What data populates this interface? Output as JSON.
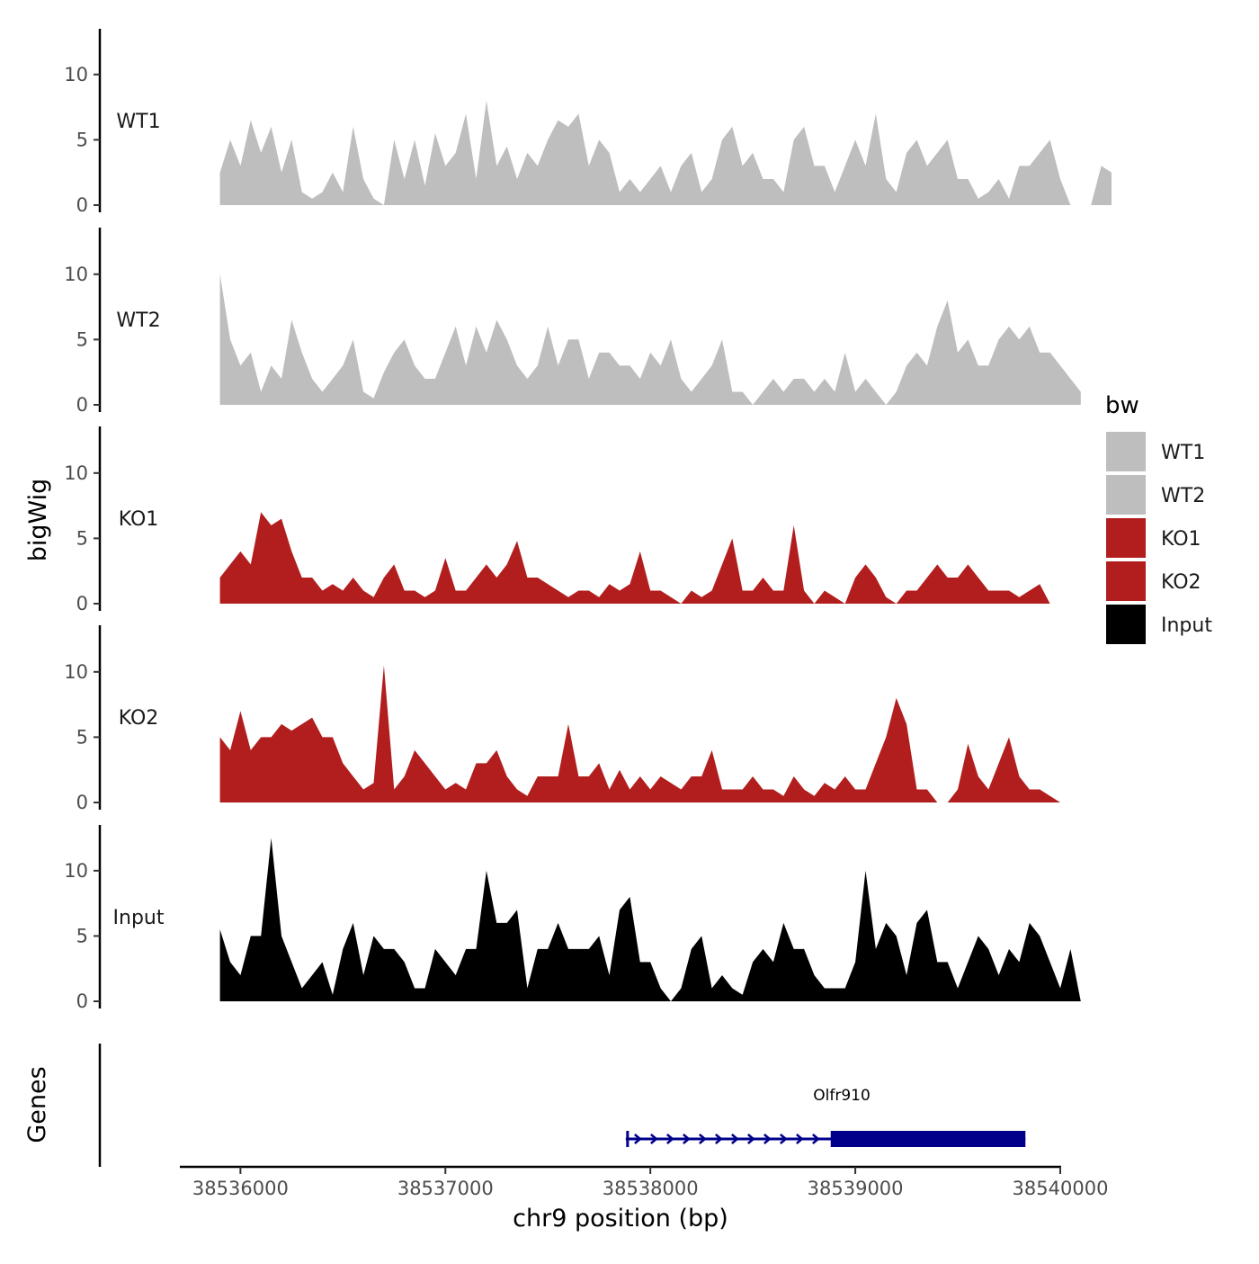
{
  "chart_data": {
    "type": "area",
    "title": "",
    "xlabel": "chr9 position (bp)",
    "ylabel": "bigWig",
    "genes_label": "Genes",
    "xlim": [
      38535700,
      38540000
    ],
    "x_ticks": [
      38536000,
      38537000,
      38538000,
      38539000,
      38540000
    ],
    "x_tick_labels": [
      "38536000",
      "38537000",
      "38538000",
      "38539000",
      "38540000"
    ],
    "ylim": [
      0,
      13.5
    ],
    "y_ticks": [
      0,
      5,
      10
    ],
    "y_tick_labels": [
      "0",
      "5",
      "10"
    ],
    "legend": {
      "title": "bw",
      "position": "right",
      "entries": [
        {
          "label": "WT1",
          "color": "#bebebe"
        },
        {
          "label": "WT2",
          "color": "#bebebe"
        },
        {
          "label": "KO1",
          "color": "#b21e1e"
        },
        {
          "label": "KO2",
          "color": "#b21e1e"
        },
        {
          "label": "Input",
          "color": "#000000"
        }
      ]
    },
    "x_start": 38535900,
    "x_step": 50,
    "series": [
      {
        "name": "WT1",
        "color": "#bebebe",
        "values": [
          2.5,
          5,
          3,
          6.5,
          4,
          6,
          2.5,
          5,
          1,
          0.5,
          1,
          2.5,
          1,
          6,
          2,
          0.5,
          0,
          5,
          2,
          5,
          1.5,
          5.5,
          3,
          4,
          7,
          2,
          8,
          3,
          4.5,
          2,
          4,
          3,
          5,
          6.5,
          6,
          7,
          3,
          5,
          4,
          1,
          2,
          1,
          2,
          3,
          1,
          3,
          4,
          1,
          2,
          5,
          6,
          3,
          4,
          2,
          2,
          1,
          5,
          6,
          3,
          3,
          1,
          3,
          5,
          3,
          7,
          2,
          1,
          4,
          5,
          3,
          4,
          5,
          2,
          2,
          0.5,
          1,
          2,
          0.5,
          3,
          3,
          4,
          5,
          2,
          0,
          0,
          0,
          3,
          2.5
        ]
      },
      {
        "name": "WT2",
        "color": "#bebebe",
        "values": [
          10,
          5,
          3,
          4,
          1,
          3,
          2,
          6.5,
          4,
          2,
          1,
          2,
          3,
          5,
          1,
          0.5,
          2.5,
          4,
          5,
          3,
          2,
          2,
          4,
          6,
          3,
          6,
          4,
          6.5,
          5,
          3,
          2,
          3,
          6,
          3,
          5,
          5,
          2,
          4,
          4,
          3,
          3,
          2,
          4,
          3,
          5,
          2,
          1,
          2,
          3,
          5,
          1,
          1,
          0,
          1,
          2,
          1,
          2,
          2,
          1,
          2,
          1,
          4,
          1,
          2,
          1,
          0,
          1,
          3,
          4,
          3,
          6,
          8,
          4,
          5,
          3,
          3,
          5,
          6,
          5,
          6,
          4,
          4,
          3,
          2,
          1
        ]
      },
      {
        "name": "KO1",
        "color": "#b21e1e",
        "values": [
          2,
          3,
          4,
          3,
          7,
          6,
          6.5,
          4,
          2,
          2,
          1,
          1.5,
          1,
          2,
          1,
          0.5,
          2,
          3,
          1,
          1,
          0.5,
          1,
          3.5,
          1,
          1,
          2,
          3,
          2,
          3,
          4.8,
          2,
          2,
          1.5,
          1,
          0.5,
          1,
          1,
          0.5,
          1.5,
          1,
          1.5,
          4,
          1,
          1,
          0.5,
          0,
          1,
          0.5,
          1,
          3,
          5,
          1,
          1,
          2,
          1,
          1,
          6,
          1,
          0,
          1,
          0.5,
          0,
          2,
          3,
          2,
          0.5,
          0,
          1,
          1,
          2,
          3,
          2,
          2,
          3,
          2,
          1,
          1,
          1,
          0.5,
          1,
          1.5,
          0
        ]
      },
      {
        "name": "KO2",
        "color": "#b21e1e",
        "values": [
          5,
          4,
          7,
          4,
          5,
          5,
          6,
          5.5,
          6,
          6.5,
          5,
          5,
          3,
          2,
          1,
          1.5,
          10.5,
          1,
          2,
          4,
          3,
          2,
          1,
          1.5,
          1,
          3,
          3,
          4,
          2,
          1,
          0.5,
          2,
          2,
          2,
          6,
          2,
          2,
          3,
          1,
          2.5,
          1,
          2,
          1,
          2,
          1.5,
          1,
          2,
          2,
          4,
          1,
          1,
          1,
          2,
          1,
          1,
          0.5,
          2,
          1,
          0.5,
          1.5,
          1,
          2,
          1,
          1,
          3,
          5,
          8,
          6,
          1,
          1,
          0,
          0,
          1,
          4.5,
          2,
          1,
          3,
          5,
          2,
          1,
          1,
          0.5,
          0
        ]
      },
      {
        "name": "Input",
        "color": "#000000",
        "values": [
          5.5,
          3,
          2,
          5,
          5,
          12.5,
          5,
          3,
          1,
          2,
          3,
          0.5,
          4,
          6,
          2,
          5,
          4,
          4,
          3,
          1,
          1,
          4,
          3,
          2,
          4,
          4,
          10,
          6,
          6,
          7,
          1,
          4,
          4,
          6,
          4,
          4,
          4,
          5,
          2,
          7,
          8,
          3,
          3,
          1,
          0,
          1,
          4,
          5,
          1,
          2,
          1,
          0.5,
          3,
          4,
          3,
          6,
          4,
          4,
          2,
          1,
          1,
          1,
          3,
          10,
          4,
          6,
          5,
          2,
          6,
          7,
          3,
          3,
          1,
          3,
          5,
          4,
          2,
          4,
          3,
          6,
          5,
          3,
          1,
          4,
          0
        ]
      }
    ],
    "gene": {
      "name": "Olfr910",
      "strand": "+",
      "start": 38537880,
      "end": 38539830,
      "cds_start": 38538880,
      "cds_end": 38539830,
      "color": "#00008b"
    }
  }
}
